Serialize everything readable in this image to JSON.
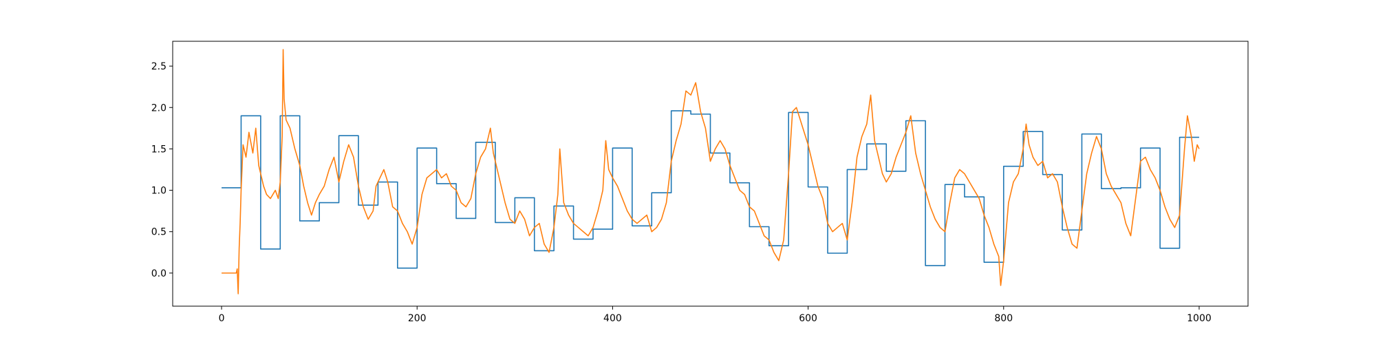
{
  "chart_data": {
    "type": "line",
    "title": "",
    "xlabel": "",
    "ylabel": "",
    "xlim": [
      -50,
      1050
    ],
    "ylim": [
      -0.4,
      2.8
    ],
    "xticks": [
      0,
      200,
      400,
      600,
      800,
      1000
    ],
    "yticks": [
      0.0,
      0.5,
      1.0,
      1.5,
      2.0,
      2.5
    ],
    "xtick_labels": [
      "0",
      "200",
      "400",
      "600",
      "800",
      "1000"
    ],
    "ytick_labels": [
      "0.0",
      "0.5",
      "1.0",
      "1.5",
      "2.0",
      "2.5"
    ],
    "grid": false,
    "legend": "none",
    "series": [
      {
        "color": "#1f77b4",
        "step": true,
        "points": [
          [
            0,
            1.03
          ],
          [
            20,
            1.03
          ],
          [
            20,
            1.9
          ],
          [
            40,
            1.9
          ],
          [
            40,
            0.29
          ],
          [
            60,
            0.29
          ],
          [
            60,
            1.9
          ],
          [
            80,
            1.9
          ],
          [
            80,
            0.63
          ],
          [
            100,
            0.63
          ],
          [
            100,
            0.85
          ],
          [
            120,
            0.85
          ],
          [
            120,
            1.66
          ],
          [
            140,
            1.66
          ],
          [
            140,
            0.82
          ],
          [
            160,
            0.82
          ],
          [
            160,
            1.1
          ],
          [
            180,
            1.1
          ],
          [
            180,
            0.06
          ],
          [
            200,
            0.06
          ],
          [
            200,
            1.51
          ],
          [
            220,
            1.51
          ],
          [
            220,
            1.08
          ],
          [
            240,
            1.08
          ],
          [
            240,
            0.66
          ],
          [
            260,
            0.66
          ],
          [
            260,
            1.58
          ],
          [
            280,
            1.58
          ],
          [
            280,
            0.61
          ],
          [
            300,
            0.61
          ],
          [
            300,
            0.91
          ],
          [
            320,
            0.91
          ],
          [
            320,
            0.27
          ],
          [
            340,
            0.27
          ],
          [
            340,
            0.81
          ],
          [
            360,
            0.81
          ],
          [
            360,
            0.41
          ],
          [
            380,
            0.41
          ],
          [
            380,
            0.53
          ],
          [
            400,
            0.53
          ],
          [
            400,
            1.51
          ],
          [
            420,
            1.51
          ],
          [
            420,
            0.57
          ],
          [
            440,
            0.57
          ],
          [
            440,
            0.97
          ],
          [
            460,
            0.97
          ],
          [
            460,
            1.96
          ],
          [
            480,
            1.96
          ],
          [
            480,
            1.92
          ],
          [
            500,
            1.92
          ],
          [
            500,
            1.45
          ],
          [
            520,
            1.45
          ],
          [
            520,
            1.09
          ],
          [
            540,
            1.09
          ],
          [
            540,
            0.56
          ],
          [
            560,
            0.56
          ],
          [
            560,
            0.33
          ],
          [
            580,
            0.33
          ],
          [
            580,
            1.94
          ],
          [
            600,
            1.94
          ],
          [
            600,
            1.04
          ],
          [
            620,
            1.04
          ],
          [
            620,
            0.24
          ],
          [
            640,
            0.24
          ],
          [
            640,
            1.25
          ],
          [
            660,
            1.25
          ],
          [
            660,
            1.56
          ],
          [
            680,
            1.56
          ],
          [
            680,
            1.23
          ],
          [
            700,
            1.23
          ],
          [
            700,
            1.84
          ],
          [
            720,
            1.84
          ],
          [
            720,
            0.09
          ],
          [
            740,
            0.09
          ],
          [
            740,
            1.07
          ],
          [
            760,
            1.07
          ],
          [
            760,
            0.92
          ],
          [
            780,
            0.92
          ],
          [
            780,
            0.13
          ],
          [
            800,
            0.13
          ],
          [
            800,
            1.29
          ],
          [
            820,
            1.29
          ],
          [
            820,
            1.71
          ],
          [
            840,
            1.71
          ],
          [
            840,
            1.19
          ],
          [
            860,
            1.19
          ],
          [
            860,
            0.52
          ],
          [
            880,
            0.52
          ],
          [
            880,
            1.68
          ],
          [
            900,
            1.68
          ],
          [
            900,
            1.02
          ],
          [
            920,
            1.02
          ],
          [
            920,
            1.03
          ],
          [
            940,
            1.03
          ],
          [
            940,
            1.51
          ],
          [
            960,
            1.51
          ],
          [
            960,
            0.3
          ],
          [
            980,
            0.3
          ],
          [
            980,
            1.64
          ],
          [
            1000,
            1.64
          ]
        ]
      },
      {
        "color": "#ff7f0e",
        "step": false,
        "points": [
          [
            0,
            0.0
          ],
          [
            15,
            0.0
          ],
          [
            16,
            0.05
          ],
          [
            17,
            -0.25
          ],
          [
            18,
            0.3
          ],
          [
            19,
            0.6
          ],
          [
            20,
            1.0
          ],
          [
            22,
            1.55
          ],
          [
            25,
            1.4
          ],
          [
            28,
            1.7
          ],
          [
            32,
            1.45
          ],
          [
            35,
            1.75
          ],
          [
            38,
            1.3
          ],
          [
            40,
            1.2
          ],
          [
            43,
            1.05
          ],
          [
            46,
            0.95
          ],
          [
            50,
            0.9
          ],
          [
            55,
            1.0
          ],
          [
            58,
            0.9
          ],
          [
            60,
            1.1
          ],
          [
            62,
            1.65
          ],
          [
            63,
            2.7
          ],
          [
            64,
            2.1
          ],
          [
            66,
            1.85
          ],
          [
            70,
            1.75
          ],
          [
            75,
            1.5
          ],
          [
            80,
            1.3
          ],
          [
            84,
            1.05
          ],
          [
            88,
            0.85
          ],
          [
            92,
            0.7
          ],
          [
            96,
            0.85
          ],
          [
            100,
            0.95
          ],
          [
            105,
            1.05
          ],
          [
            110,
            1.25
          ],
          [
            115,
            1.4
          ],
          [
            120,
            1.1
          ],
          [
            125,
            1.35
          ],
          [
            130,
            1.55
          ],
          [
            135,
            1.4
          ],
          [
            140,
            1.05
          ],
          [
            145,
            0.8
          ],
          [
            150,
            0.65
          ],
          [
            155,
            0.75
          ],
          [
            158,
            1.05
          ],
          [
            162,
            1.15
          ],
          [
            166,
            1.25
          ],
          [
            170,
            1.1
          ],
          [
            175,
            0.8
          ],
          [
            180,
            0.75
          ],
          [
            185,
            0.6
          ],
          [
            190,
            0.5
          ],
          [
            195,
            0.35
          ],
          [
            200,
            0.55
          ],
          [
            205,
            0.95
          ],
          [
            210,
            1.15
          ],
          [
            215,
            1.2
          ],
          [
            220,
            1.25
          ],
          [
            225,
            1.15
          ],
          [
            230,
            1.2
          ],
          [
            235,
            1.05
          ],
          [
            240,
            1.0
          ],
          [
            245,
            0.85
          ],
          [
            250,
            0.8
          ],
          [
            255,
            0.9
          ],
          [
            260,
            1.2
          ],
          [
            265,
            1.4
          ],
          [
            270,
            1.5
          ],
          [
            275,
            1.75
          ],
          [
            278,
            1.45
          ],
          [
            282,
            1.25
          ],
          [
            286,
            1.05
          ],
          [
            290,
            0.85
          ],
          [
            295,
            0.65
          ],
          [
            300,
            0.6
          ],
          [
            305,
            0.75
          ],
          [
            310,
            0.65
          ],
          [
            315,
            0.45
          ],
          [
            320,
            0.55
          ],
          [
            325,
            0.6
          ],
          [
            330,
            0.35
          ],
          [
            335,
            0.25
          ],
          [
            340,
            0.55
          ],
          [
            344,
            0.95
          ],
          [
            346,
            1.5
          ],
          [
            350,
            0.85
          ],
          [
            355,
            0.7
          ],
          [
            360,
            0.6
          ],
          [
            365,
            0.55
          ],
          [
            370,
            0.5
          ],
          [
            375,
            0.45
          ],
          [
            380,
            0.55
          ],
          [
            385,
            0.75
          ],
          [
            390,
            1.0
          ],
          [
            393,
            1.6
          ],
          [
            396,
            1.25
          ],
          [
            400,
            1.15
          ],
          [
            405,
            1.05
          ],
          [
            410,
            0.9
          ],
          [
            415,
            0.75
          ],
          [
            420,
            0.65
          ],
          [
            425,
            0.6
          ],
          [
            430,
            0.65
          ],
          [
            435,
            0.7
          ],
          [
            440,
            0.5
          ],
          [
            445,
            0.55
          ],
          [
            450,
            0.65
          ],
          [
            455,
            0.85
          ],
          [
            460,
            1.35
          ],
          [
            465,
            1.6
          ],
          [
            470,
            1.8
          ],
          [
            475,
            2.2
          ],
          [
            480,
            2.15
          ],
          [
            485,
            2.3
          ],
          [
            490,
            1.95
          ],
          [
            495,
            1.75
          ],
          [
            500,
            1.35
          ],
          [
            505,
            1.5
          ],
          [
            510,
            1.6
          ],
          [
            515,
            1.5
          ],
          [
            520,
            1.3
          ],
          [
            525,
            1.15
          ],
          [
            530,
            1.0
          ],
          [
            535,
            0.95
          ],
          [
            540,
            0.8
          ],
          [
            545,
            0.75
          ],
          [
            550,
            0.6
          ],
          [
            555,
            0.45
          ],
          [
            560,
            0.4
          ],
          [
            565,
            0.25
          ],
          [
            570,
            0.15
          ],
          [
            575,
            0.4
          ],
          [
            580,
            1.2
          ],
          [
            584,
            1.95
          ],
          [
            588,
            2.0
          ],
          [
            592,
            1.85
          ],
          [
            596,
            1.7
          ],
          [
            600,
            1.55
          ],
          [
            605,
            1.3
          ],
          [
            610,
            1.05
          ],
          [
            615,
            0.9
          ],
          [
            620,
            0.6
          ],
          [
            625,
            0.5
          ],
          [
            630,
            0.55
          ],
          [
            635,
            0.6
          ],
          [
            640,
            0.4
          ],
          [
            645,
            0.85
          ],
          [
            650,
            1.4
          ],
          [
            655,
            1.65
          ],
          [
            660,
            1.8
          ],
          [
            664,
            2.15
          ],
          [
            668,
            1.6
          ],
          [
            672,
            1.4
          ],
          [
            676,
            1.2
          ],
          [
            680,
            1.1
          ],
          [
            685,
            1.2
          ],
          [
            690,
            1.4
          ],
          [
            695,
            1.55
          ],
          [
            700,
            1.7
          ],
          [
            705,
            1.9
          ],
          [
            710,
            1.45
          ],
          [
            715,
            1.2
          ],
          [
            720,
            1.0
          ],
          [
            725,
            0.8
          ],
          [
            730,
            0.65
          ],
          [
            735,
            0.55
          ],
          [
            740,
            0.5
          ],
          [
            745,
            0.85
          ],
          [
            750,
            1.15
          ],
          [
            755,
            1.25
          ],
          [
            760,
            1.2
          ],
          [
            765,
            1.1
          ],
          [
            770,
            1.0
          ],
          [
            775,
            0.9
          ],
          [
            780,
            0.7
          ],
          [
            785,
            0.55
          ],
          [
            790,
            0.35
          ],
          [
            795,
            0.2
          ],
          [
            797,
            -0.15
          ],
          [
            800,
            0.15
          ],
          [
            805,
            0.85
          ],
          [
            810,
            1.1
          ],
          [
            815,
            1.2
          ],
          [
            820,
            1.5
          ],
          [
            823,
            1.8
          ],
          [
            826,
            1.55
          ],
          [
            830,
            1.4
          ],
          [
            835,
            1.3
          ],
          [
            840,
            1.35
          ],
          [
            845,
            1.15
          ],
          [
            850,
            1.2
          ],
          [
            855,
            1.1
          ],
          [
            860,
            0.8
          ],
          [
            865,
            0.55
          ],
          [
            870,
            0.35
          ],
          [
            875,
            0.3
          ],
          [
            880,
            0.75
          ],
          [
            885,
            1.2
          ],
          [
            890,
            1.45
          ],
          [
            895,
            1.65
          ],
          [
            900,
            1.5
          ],
          [
            905,
            1.2
          ],
          [
            910,
            1.05
          ],
          [
            915,
            0.95
          ],
          [
            920,
            0.85
          ],
          [
            925,
            0.6
          ],
          [
            930,
            0.45
          ],
          [
            935,
            0.9
          ],
          [
            940,
            1.35
          ],
          [
            945,
            1.4
          ],
          [
            950,
            1.25
          ],
          [
            955,
            1.15
          ],
          [
            960,
            1.0
          ],
          [
            965,
            0.8
          ],
          [
            970,
            0.65
          ],
          [
            975,
            0.55
          ],
          [
            980,
            0.7
          ],
          [
            985,
            1.5
          ],
          [
            988,
            1.9
          ],
          [
            992,
            1.65
          ],
          [
            995,
            1.35
          ],
          [
            998,
            1.55
          ],
          [
            1000,
            1.5
          ]
        ]
      }
    ]
  }
}
